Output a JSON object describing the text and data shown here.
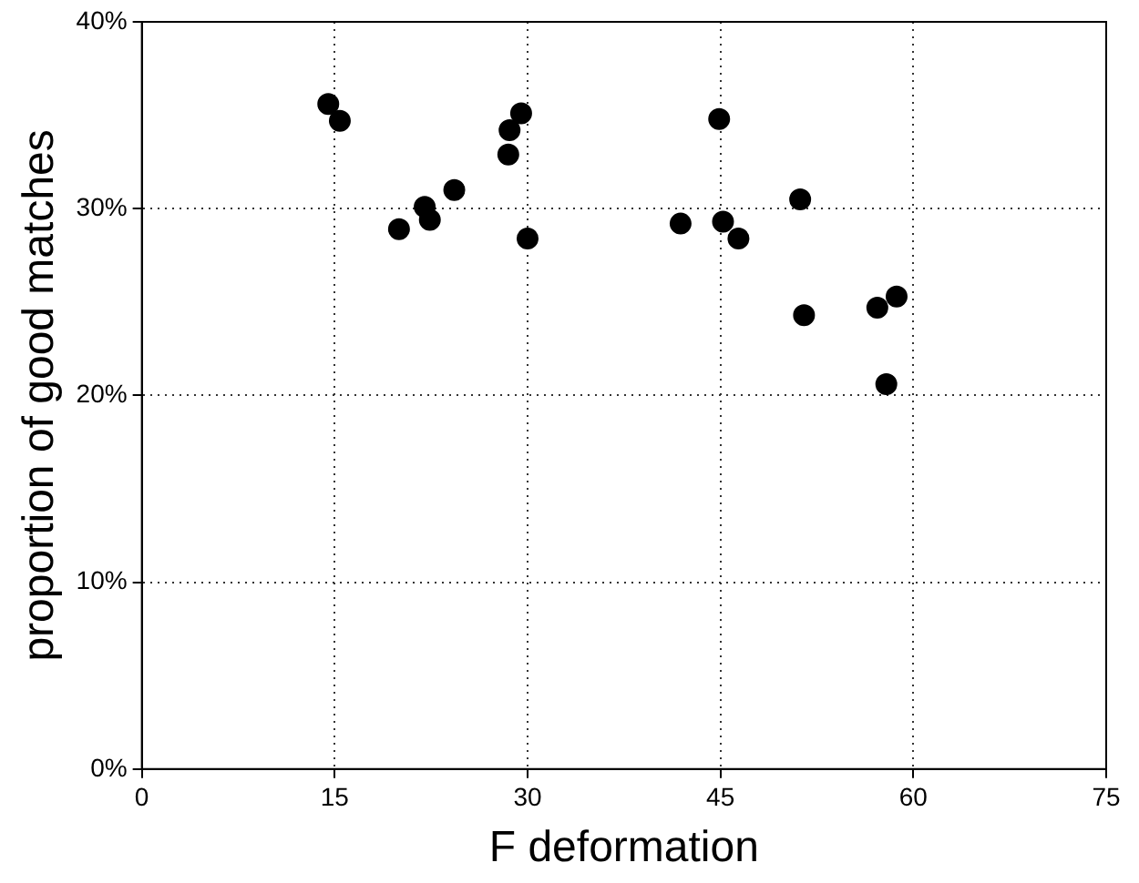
{
  "chart_data": {
    "type": "scatter",
    "xlabel": "F deformation",
    "ylabel": "proportion of good matches",
    "x": [
      14.5,
      15.4,
      20.0,
      22.0,
      22.4,
      24.3,
      28.5,
      28.6,
      29.5,
      30.0,
      41.9,
      44.9,
      45.2,
      46.4,
      51.2,
      51.5,
      57.2,
      58.7,
      57.9
    ],
    "series": [
      {
        "color": "#000000",
        "values": [
          35.6,
          34.7,
          28.9,
          30.1,
          29.4,
          31.0,
          32.9,
          34.2,
          35.1,
          28.4,
          29.2,
          34.8,
          29.3,
          28.4,
          30.5,
          24.3,
          24.7,
          25.3,
          20.6
        ]
      }
    ],
    "xlim": [
      0,
      75
    ],
    "xticks": [
      0,
      15,
      30,
      45,
      60,
      75
    ],
    "ylim": [
      0,
      40
    ],
    "yticks": [
      {
        "value": 0,
        "label": "0%"
      },
      {
        "value": 10,
        "label": "10%"
      },
      {
        "value": 20,
        "label": "20%"
      },
      {
        "value": 30,
        "label": "30%"
      },
      {
        "value": 40,
        "label": "40%"
      }
    ],
    "grid": true,
    "marker": "circle",
    "legend": false
  }
}
